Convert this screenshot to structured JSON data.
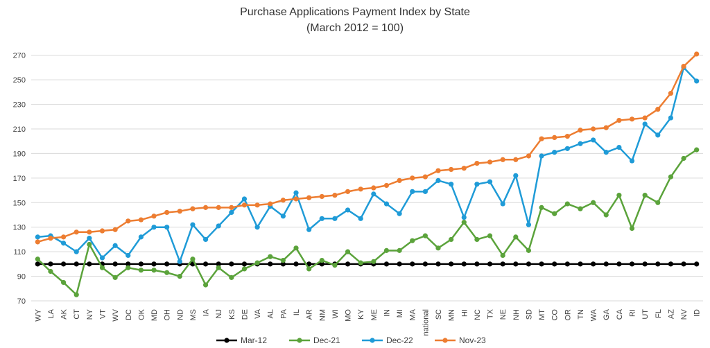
{
  "chart_data": {
    "type": "line",
    "title": "Purchase Applications Payment Index by State",
    "subtitle": "(March 2012 = 100)",
    "xlabel": "",
    "ylabel": "",
    "ylim": [
      70,
      280
    ],
    "yticks": [
      70,
      90,
      110,
      130,
      150,
      170,
      190,
      210,
      230,
      250,
      270
    ],
    "grid": "horizontal",
    "legend_position": "bottom",
    "categories": [
      "WY",
      "LA",
      "AK",
      "CT",
      "NY",
      "VT",
      "WV",
      "DC",
      "OK",
      "MD",
      "OH",
      "ND",
      "MS",
      "IA",
      "NJ",
      "KS",
      "DE",
      "VA",
      "AL",
      "PA",
      "IL",
      "AR",
      "NM",
      "WI",
      "MO",
      "KY",
      "ME",
      "IN",
      "MI",
      "MA",
      "national",
      "SC",
      "MN",
      "HI",
      "NC",
      "TX",
      "NE",
      "NH",
      "SD",
      "MT",
      "CO",
      "OR",
      "TN",
      "WA",
      "GA",
      "CA",
      "RI",
      "UT",
      "FL",
      "AZ",
      "NV",
      "ID"
    ],
    "series": [
      {
        "name": "Mar-12",
        "color": "#000000",
        "values": [
          100,
          100,
          100,
          100,
          100,
          100,
          100,
          100,
          100,
          100,
          100,
          100,
          100,
          100,
          100,
          100,
          100,
          100,
          100,
          100,
          100,
          100,
          100,
          100,
          100,
          100,
          100,
          100,
          100,
          100,
          100,
          100,
          100,
          100,
          100,
          100,
          100,
          100,
          100,
          100,
          100,
          100,
          100,
          100,
          100,
          100,
          100,
          100,
          100,
          100,
          100,
          100
        ]
      },
      {
        "name": "Dec-21",
        "color": "#5BA33B",
        "values": [
          104,
          94,
          85,
          75,
          116,
          97,
          89,
          97,
          95,
          95,
          93,
          90,
          104,
          83,
          97,
          89,
          96,
          101,
          106,
          103,
          113,
          96,
          103,
          99,
          110,
          101,
          102,
          111,
          111,
          119,
          123,
          113,
          120,
          134,
          120,
          123,
          107,
          122,
          111,
          146,
          141,
          149,
          145,
          150,
          140,
          156,
          129,
          156,
          150,
          171,
          186,
          193
        ]
      },
      {
        "name": "Dec-22",
        "color": "#1F9BD7",
        "values": [
          122,
          123,
          117,
          110,
          121,
          105,
          115,
          107,
          122,
          130,
          130,
          102,
          132,
          120,
          131,
          142,
          153,
          130,
          147,
          139,
          158,
          128,
          137,
          137,
          144,
          137,
          157,
          149,
          141,
          159,
          159,
          168,
          165,
          138,
          165,
          167,
          149,
          172,
          132,
          188,
          191,
          194,
          198,
          201,
          191,
          195,
          184,
          214,
          205,
          219,
          260,
          249
        ]
      },
      {
        "name": "Nov-23",
        "color": "#ED7D31",
        "values": [
          118,
          121,
          122,
          126,
          126,
          127,
          128,
          135,
          136,
          139,
          142,
          143,
          145,
          146,
          146,
          146,
          148,
          148,
          149,
          152,
          153,
          154,
          155,
          156,
          159,
          161,
          162,
          164,
          168,
          170,
          171,
          176,
          177,
          178,
          182,
          183,
          185,
          185,
          188,
          202,
          203,
          204,
          209,
          210,
          211,
          217,
          218,
          219,
          226,
          239,
          261,
          271
        ]
      }
    ]
  }
}
